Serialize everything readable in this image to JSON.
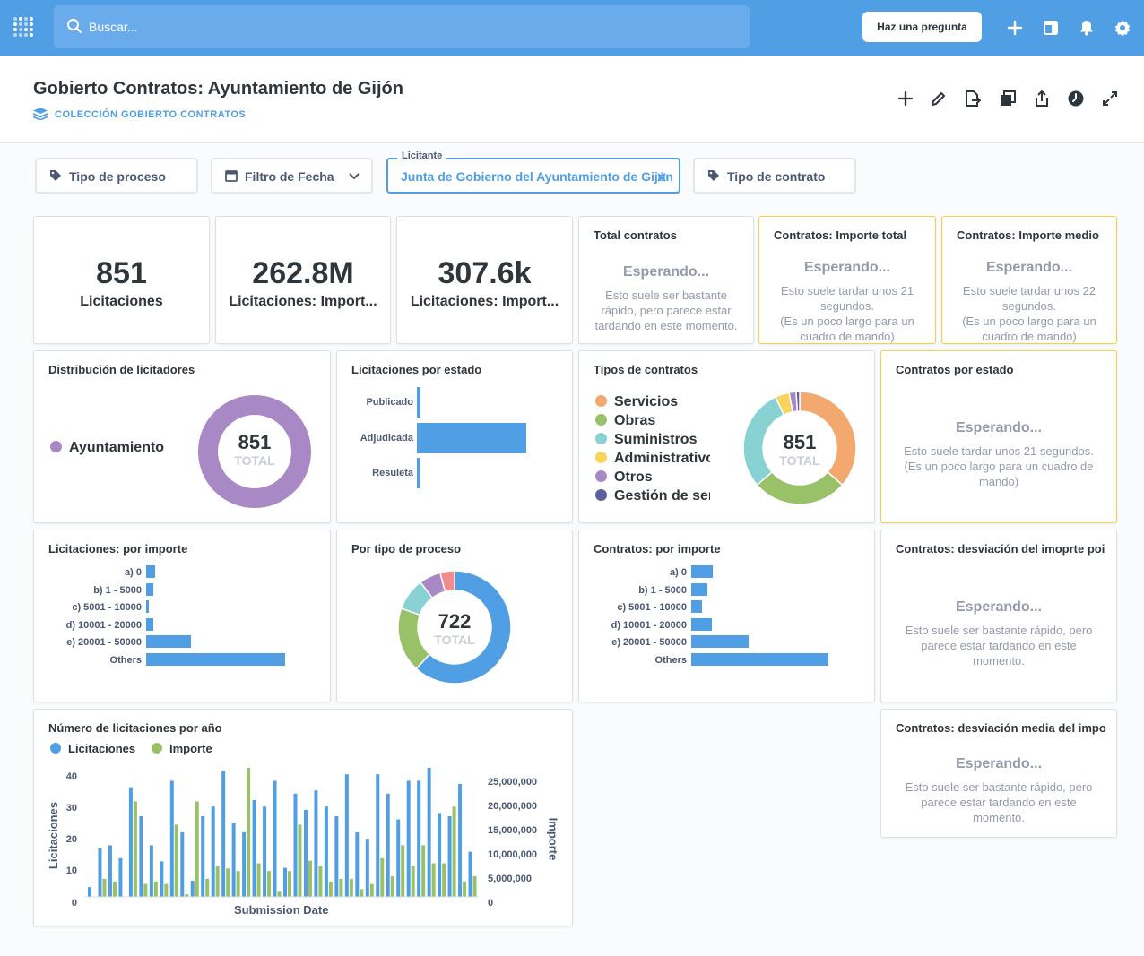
{
  "nav": {
    "search_placeholder": "Buscar...",
    "ask_button": "Haz una pregunta",
    "icons": [
      "add-icon",
      "dashboard-icon",
      "bell-icon",
      "gear-icon"
    ]
  },
  "header": {
    "title": "Gobierto Contratos: Ayuntamiento de Gijón",
    "collection": "COLECCIÓN GOBIERTO CONTRATOS",
    "actions": [
      "add-icon",
      "pencil-icon",
      "move-icon",
      "duplicate-icon",
      "share-icon",
      "history-icon",
      "fullscreen-icon"
    ]
  },
  "filters": [
    {
      "label": "Tipo de proceso"
    },
    {
      "label": "Filtro de Fecha"
    },
    {
      "legend": "Licitante",
      "label": "Junta de Gobierno del Ayuntamiento de Gijón"
    },
    {
      "label": "Tipo de contrato"
    }
  ],
  "scalars": [
    {
      "value": "851",
      "label": "Licitaciones"
    },
    {
      "value": "262.8M",
      "label": "Licitaciones: Import..."
    },
    {
      "value": "307.6k",
      "label": "Licitaciones: Import..."
    }
  ],
  "waiting": {
    "heading": "Esperando...",
    "total_contratos": {
      "title": "Total contratos",
      "text": "Esto suele ser bastante rápido, pero parece estar tardando en este momento."
    },
    "importe_total": {
      "title": "Contratos: Importe total",
      "text1": "Esto suele tardar unos 21 segundos.",
      "text2": "(Es un poco largo para un cuadro de mando)"
    },
    "importe_medio": {
      "title": "Contratos: Importe medio",
      "text1": "Esto suele tardar unos 22 segundos.",
      "text2": "(Es un poco largo para un cuadro de mando)"
    },
    "por_estado": {
      "title": "Contratos por estado",
      "text1": "Esto suele tardar unos 21 segundos.",
      "text2": "(Es un poco largo para un cuadro de mando)"
    },
    "desviacion": {
      "title": "Contratos: desviación del imoprte poi",
      "text": "Esto suele ser bastante rápido, pero parece estar tardando en este momento."
    },
    "desviacion_media": {
      "title": "Contratos: desviación media del impo",
      "text": "Esto suele ser bastante rápido, pero parece estar tardando en este momento."
    }
  },
  "dist_licitadores": {
    "title": "Distribución de licitadores",
    "legend": "Ayuntamiento",
    "total": "851",
    "total_label": "TOTAL",
    "color": "#a989c5"
  },
  "por_estado": {
    "title": "Licitaciones por estado",
    "categories": [
      "Publicado",
      "Adjudicada",
      "Resuleta"
    ],
    "values": [
      4,
      120,
      2
    ]
  },
  "tipos_contratos": {
    "title": "Tipos de contratos",
    "total": "851",
    "total_label": "TOTAL",
    "legend": [
      "Servicios",
      "Obras",
      "Suministros",
      "Administrativo",
      "Otros",
      "Gestión de ser"
    ],
    "colors": [
      "#f2a86f",
      "#98c168",
      "#88d2d4",
      "#f9d45c",
      "#a989c5",
      "#5c5fa0"
    ],
    "values": [
      36,
      27,
      29,
      4,
      2,
      1
    ]
  },
  "lic_por_importe": {
    "title": "Licitaciones: por importe",
    "categories": [
      "a) 0",
      "b) 1 - 5000",
      "c) 5001 - 10000",
      "d) 10001 - 20000",
      "e) 20001 - 50000",
      "Others"
    ],
    "values": [
      10,
      8,
      3,
      8,
      48,
      148
    ]
  },
  "por_tipo_proceso": {
    "title": "Por tipo de proceso",
    "total": "722",
    "total_label": "TOTAL",
    "colors": [
      "#509ee3",
      "#98c168",
      "#88d2d4",
      "#a989c5",
      "#ef8c8c"
    ],
    "values": [
      60,
      18,
      9,
      6,
      4
    ]
  },
  "con_por_importe": {
    "title": "Contratos: por importe",
    "categories": [
      "a) 0",
      "b) 1 - 5000",
      "c) 5001 - 10000",
      "d) 10001 - 20000",
      "e) 20001 - 50000",
      "Others"
    ],
    "values": [
      24,
      18,
      12,
      23,
      64,
      153
    ]
  },
  "por_anio": {
    "title": "Número de licitaciones por año",
    "legend": [
      {
        "name": "Licitaciones",
        "color": "#509ee3"
      },
      {
        "name": "Importe",
        "color": "#98c168"
      }
    ],
    "ylabel_left": "Licitaciones",
    "ylabel_right": "Importe",
    "xlabel": "Submission Date",
    "left_ticks": [
      "40",
      "30",
      "20",
      "10",
      "0"
    ],
    "right_ticks": [
      "25,000,000",
      "20,000,000",
      "15,000,000",
      "10,000,000",
      "5,000,000",
      "0"
    ]
  },
  "chart_data": [
    {
      "type": "bar",
      "title": "Licitaciones por estado",
      "categories": [
        "Publicado",
        "Adjudicada",
        "Resuleta"
      ],
      "values": [
        4,
        120,
        2
      ]
    },
    {
      "type": "bar",
      "title": "Número de licitaciones por año",
      "xlabel": "Submission Date",
      "ylabel": "Licitaciones",
      "ylim": [
        0,
        40
      ],
      "y2lim": [
        0,
        25000000
      ],
      "series": [
        {
          "name": "Licitaciones",
          "values": [
            3,
            15,
            16,
            12,
            34,
            25,
            16,
            11,
            36,
            20,
            5,
            25,
            28,
            39,
            23,
            20,
            30,
            28,
            36,
            9,
            32,
            27,
            33,
            28,
            25,
            38,
            20,
            18,
            38,
            32,
            24,
            36,
            36,
            40,
            26,
            25,
            35,
            14
          ]
        },
        {
          "name": "Importe",
          "values": [
            0,
            3500000,
            3000000,
            0,
            18500000,
            2500000,
            3000000,
            2500000,
            14000000,
            500000,
            18500000,
            3500000,
            6000000,
            5500000,
            5000000,
            25000000,
            6500000,
            5000000,
            1000000,
            5000000,
            14000000,
            7000000,
            6000000,
            3000000,
            3500000,
            3500000,
            1500000,
            2500000,
            7500000,
            4000000,
            10000000,
            6000000,
            10000000,
            6500000,
            6500000,
            17500000,
            3000000,
            4000000
          ]
        }
      ]
    }
  ]
}
